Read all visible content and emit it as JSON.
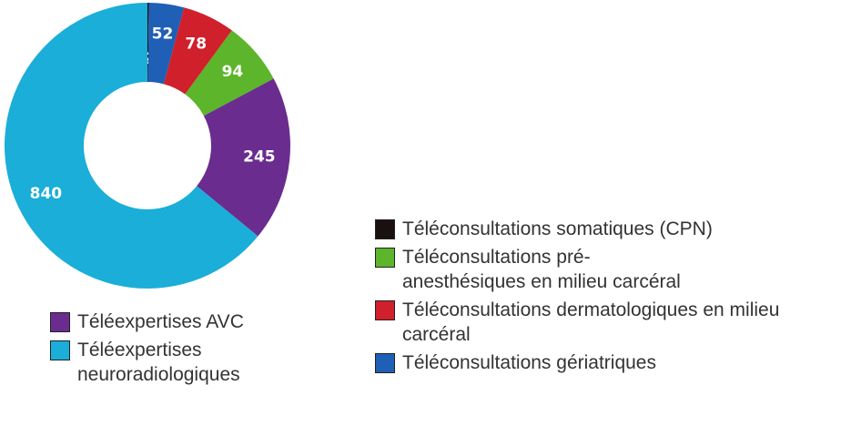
{
  "chart_data": {
    "type": "pie",
    "categories": [
      "Téléconsultations somatiques (CPN)",
      "Téléconsultations gériatriques",
      "Téléconsultations dermatologiques en milieu carcéral",
      "Téléconsultations pré-anesthésiques en milieu carcéral",
      "Téléexpertises AVC",
      "Téléexpertises neuroradiologiques"
    ],
    "values": [
      2,
      52,
      78,
      94,
      245,
      840
    ],
    "colors": [
      "#1a1010",
      "#1f5fb5",
      "#d0202c",
      "#5cb52a",
      "#6a2c8e",
      "#1aaed8"
    ]
  }
}
